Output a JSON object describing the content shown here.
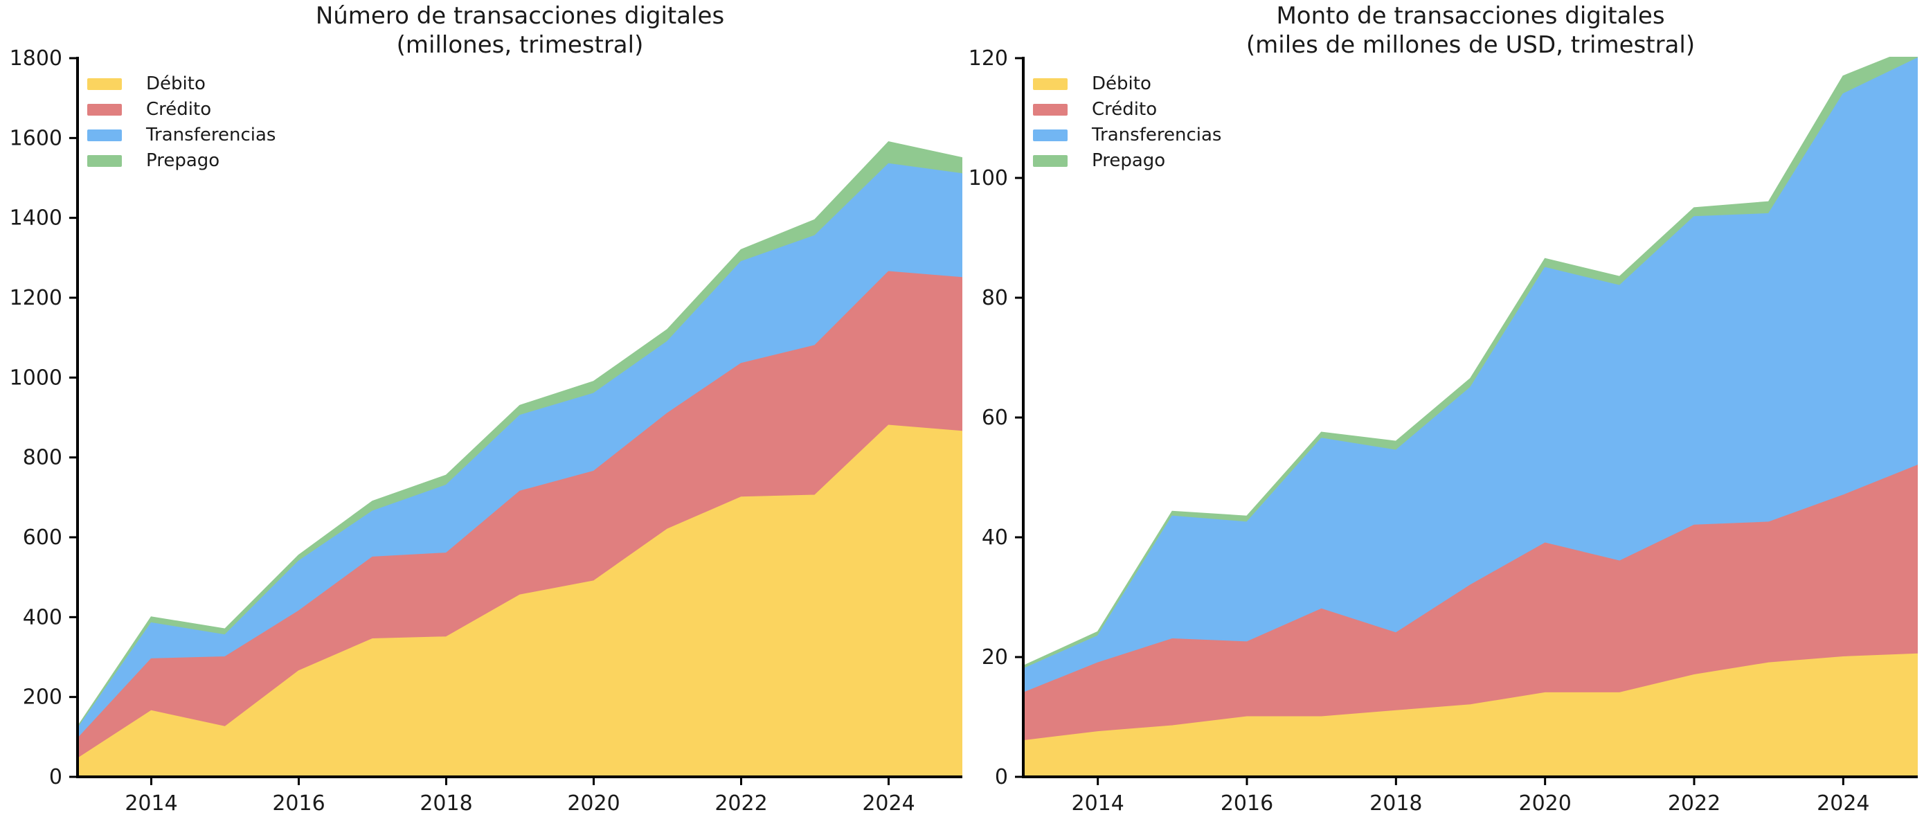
{
  "page": {
    "background": "#ffffff",
    "text_color": "#1a1a1a",
    "axis_color": "#000000"
  },
  "chart_data": [
    {
      "type": "area",
      "stacked": true,
      "title_lines": [
        "Número de transacciones digitales",
        "(millones, trimestral)"
      ],
      "x": [
        2013,
        2014,
        2015,
        2016,
        2017,
        2018,
        2019,
        2020,
        2021,
        2022,
        2023,
        2024,
        2025
      ],
      "xlim": [
        2013,
        2025
      ],
      "ylim": [
        0,
        1800
      ],
      "x_ticks": [
        2014,
        2016,
        2018,
        2020,
        2022,
        2024
      ],
      "y_ticks": [
        0,
        200,
        400,
        600,
        800,
        1000,
        1200,
        1400,
        1600,
        1800
      ],
      "grid": false,
      "legend_position": "upper-left",
      "series": [
        {
          "name": "Débito",
          "color": "#FBD45F",
          "values": [
            45,
            165,
            125,
            265,
            345,
            350,
            455,
            490,
            620,
            700,
            705,
            880,
            865
          ]
        },
        {
          "name": "Crédito",
          "color": "#E07F7F",
          "values": [
            50,
            130,
            175,
            150,
            205,
            210,
            260,
            275,
            290,
            335,
            375,
            385,
            385
          ]
        },
        {
          "name": "Transferencias",
          "color": "#72B6F3",
          "values": [
            25,
            90,
            55,
            125,
            115,
            170,
            190,
            195,
            180,
            255,
            275,
            270,
            260
          ]
        },
        {
          "name": "Prepago",
          "color": "#90C990",
          "values": [
            5,
            15,
            15,
            15,
            25,
            25,
            25,
            30,
            30,
            30,
            40,
            55,
            40
          ]
        }
      ]
    },
    {
      "type": "area",
      "stacked": true,
      "title_lines": [
        "Monto de transacciones digitales",
        "(miles de millones de USD, trimestral)"
      ],
      "x": [
        2013,
        2014,
        2015,
        2016,
        2017,
        2018,
        2019,
        2020,
        2021,
        2022,
        2023,
        2024,
        2025
      ],
      "xlim": [
        2013,
        2025
      ],
      "ylim": [
        0,
        120
      ],
      "x_ticks": [
        2014,
        2016,
        2018,
        2020,
        2022,
        2024
      ],
      "y_ticks": [
        0,
        20,
        40,
        60,
        80,
        100,
        120
      ],
      "grid": false,
      "legend_position": "upper-left",
      "series": [
        {
          "name": "Débito",
          "color": "#FBD45F",
          "values": [
            6,
            7.5,
            8.5,
            10,
            10,
            11,
            12,
            14,
            14,
            17,
            19,
            20,
            20.5
          ]
        },
        {
          "name": "Crédito",
          "color": "#E07F7F",
          "values": [
            8,
            11.5,
            14.5,
            12.5,
            18,
            13,
            20,
            25,
            22,
            25,
            23.5,
            27,
            31.5
          ]
        },
        {
          "name": "Transferencias",
          "color": "#72B6F3",
          "values": [
            4,
            4.5,
            20.5,
            20,
            28.5,
            30.5,
            33,
            46,
            46,
            51.5,
            51.5,
            67,
            68
          ]
        },
        {
          "name": "Prepago",
          "color": "#90C990",
          "values": [
            0.5,
            0.7,
            0.8,
            1,
            1,
            1.5,
            1.5,
            1.5,
            1.5,
            1.5,
            2,
            3,
            2
          ]
        }
      ]
    }
  ]
}
